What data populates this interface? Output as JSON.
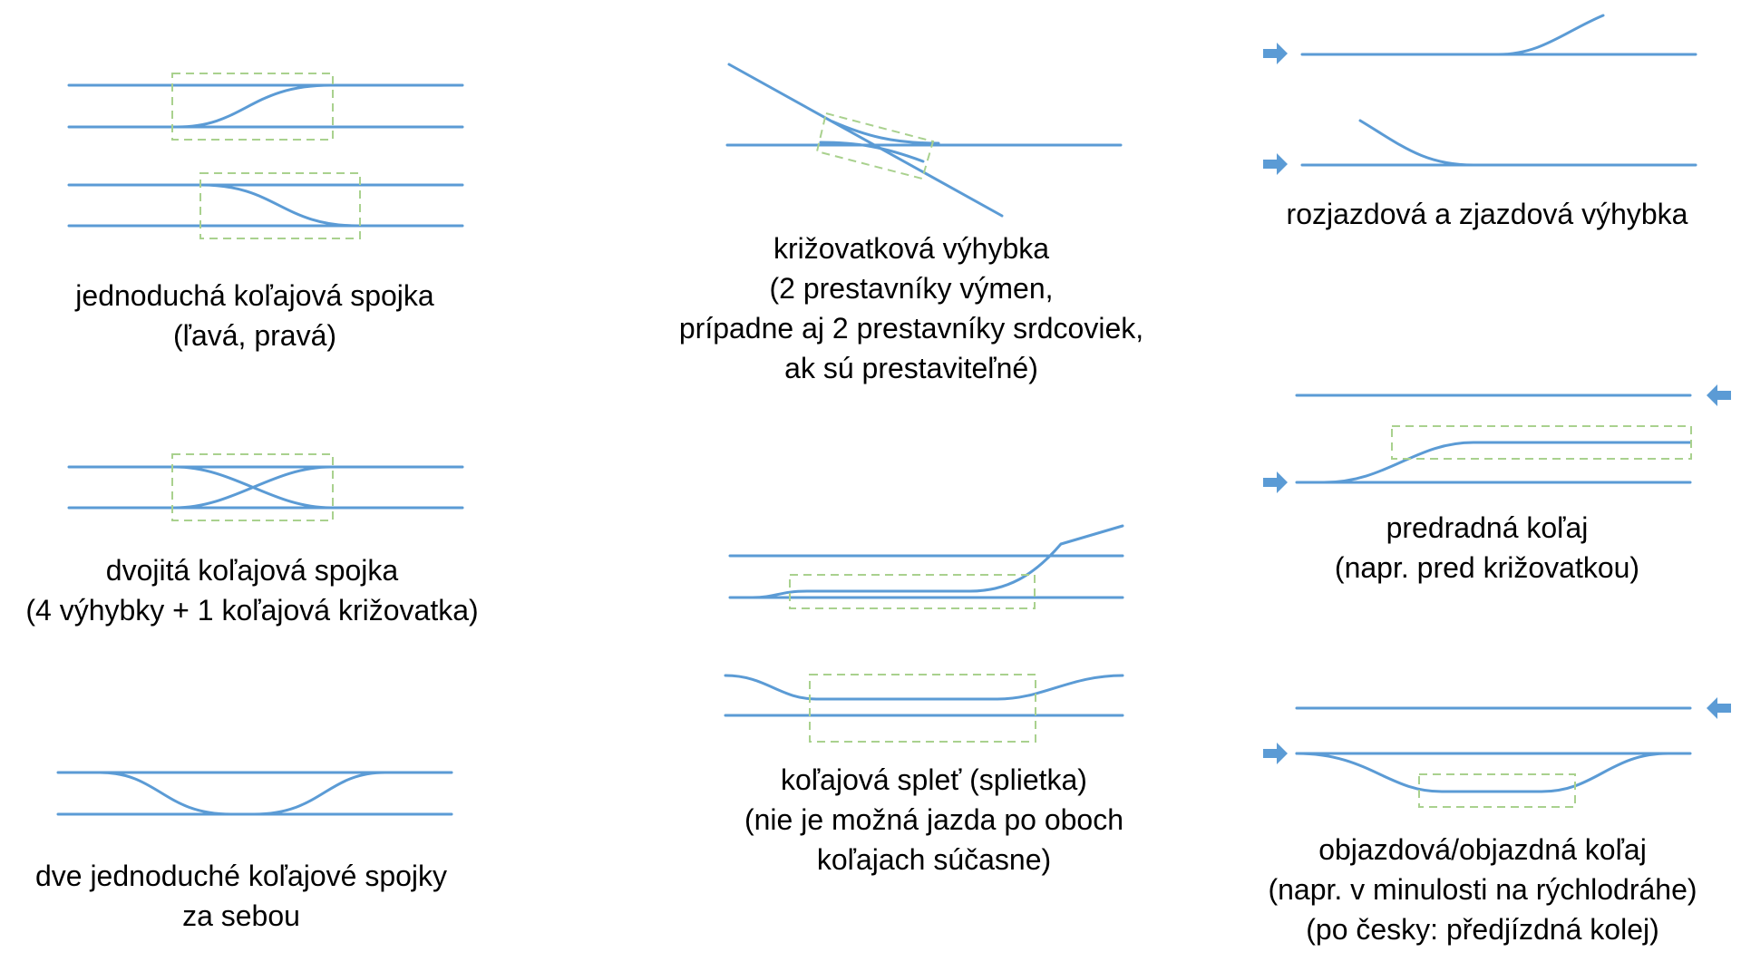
{
  "colors": {
    "track": "#5b9bd5",
    "highlight_box": "#a9d18e",
    "arrow": "#5b9bd5",
    "text": "#000000"
  },
  "captions": {
    "single_crossover": [
      "jednoduchá koľajová spojka",
      "(ľavá, pravá)"
    ],
    "double_crossover": [
      "dvojitá koľajová spojka",
      "(4 výhybky + 1 koľajová križovatka)"
    ],
    "two_crossovers": [
      "dve jednoduché koľajové spojky",
      "za sebou"
    ],
    "crossing_switch": [
      "križovatková výhybka",
      "(2 prestavníky výmen,",
      "prípadne aj 2 prestavníky srdcoviek,",
      "ak sú prestaviteľné)"
    ],
    "gauntlet": [
      "koľajová spleť (splietka)",
      "(nie je možná jazda po oboch",
      "koľajach súčasne)"
    ],
    "diverging_converging": [
      "rozjazdová a zjazdová výhybka"
    ],
    "pre_siding": [
      "predradná koľaj",
      "(napr. pred križovatkou)"
    ],
    "passing_loop": [
      "objazdová/objazdná koľaj",
      "(napr. v minulosti na rýchlodráhe)",
      "(po česky: předjízdná kolej)"
    ]
  }
}
